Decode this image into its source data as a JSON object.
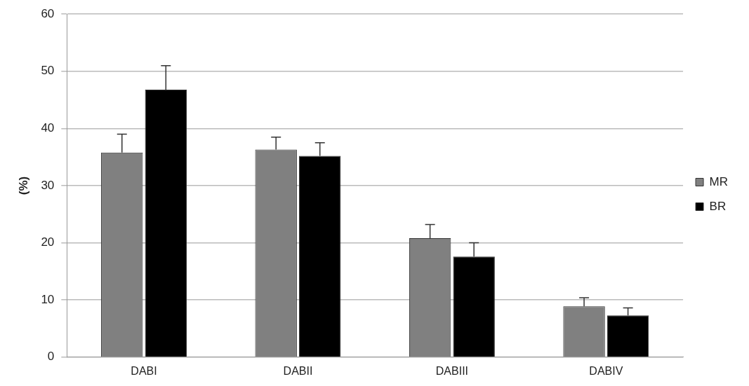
{
  "chart_data": {
    "type": "bar",
    "ylabel": "(%)",
    "categories": [
      "DABI",
      "DABII",
      "DABIII",
      "DABIV"
    ],
    "series": [
      {
        "name": "MR",
        "color": "#808080",
        "values": [
          35.8,
          36.3,
          20.8,
          8.9
        ],
        "errors": [
          [
            35.8,
            39.0
          ],
          [
            36.3,
            38.5
          ],
          [
            20.8,
            23.2
          ],
          [
            8.9,
            10.4
          ]
        ]
      },
      {
        "name": "BR",
        "color": "#000000",
        "values": [
          46.8,
          35.2,
          17.6,
          7.3
        ],
        "errors": [
          [
            46.8,
            51.0
          ],
          [
            35.2,
            37.5
          ],
          [
            17.6,
            20.0
          ],
          [
            7.3,
            8.6
          ]
        ]
      }
    ],
    "ylim": [
      0,
      60
    ],
    "yticks": [
      0,
      10,
      20,
      30,
      40,
      50,
      60
    ],
    "grid": "y",
    "legend": "right"
  }
}
